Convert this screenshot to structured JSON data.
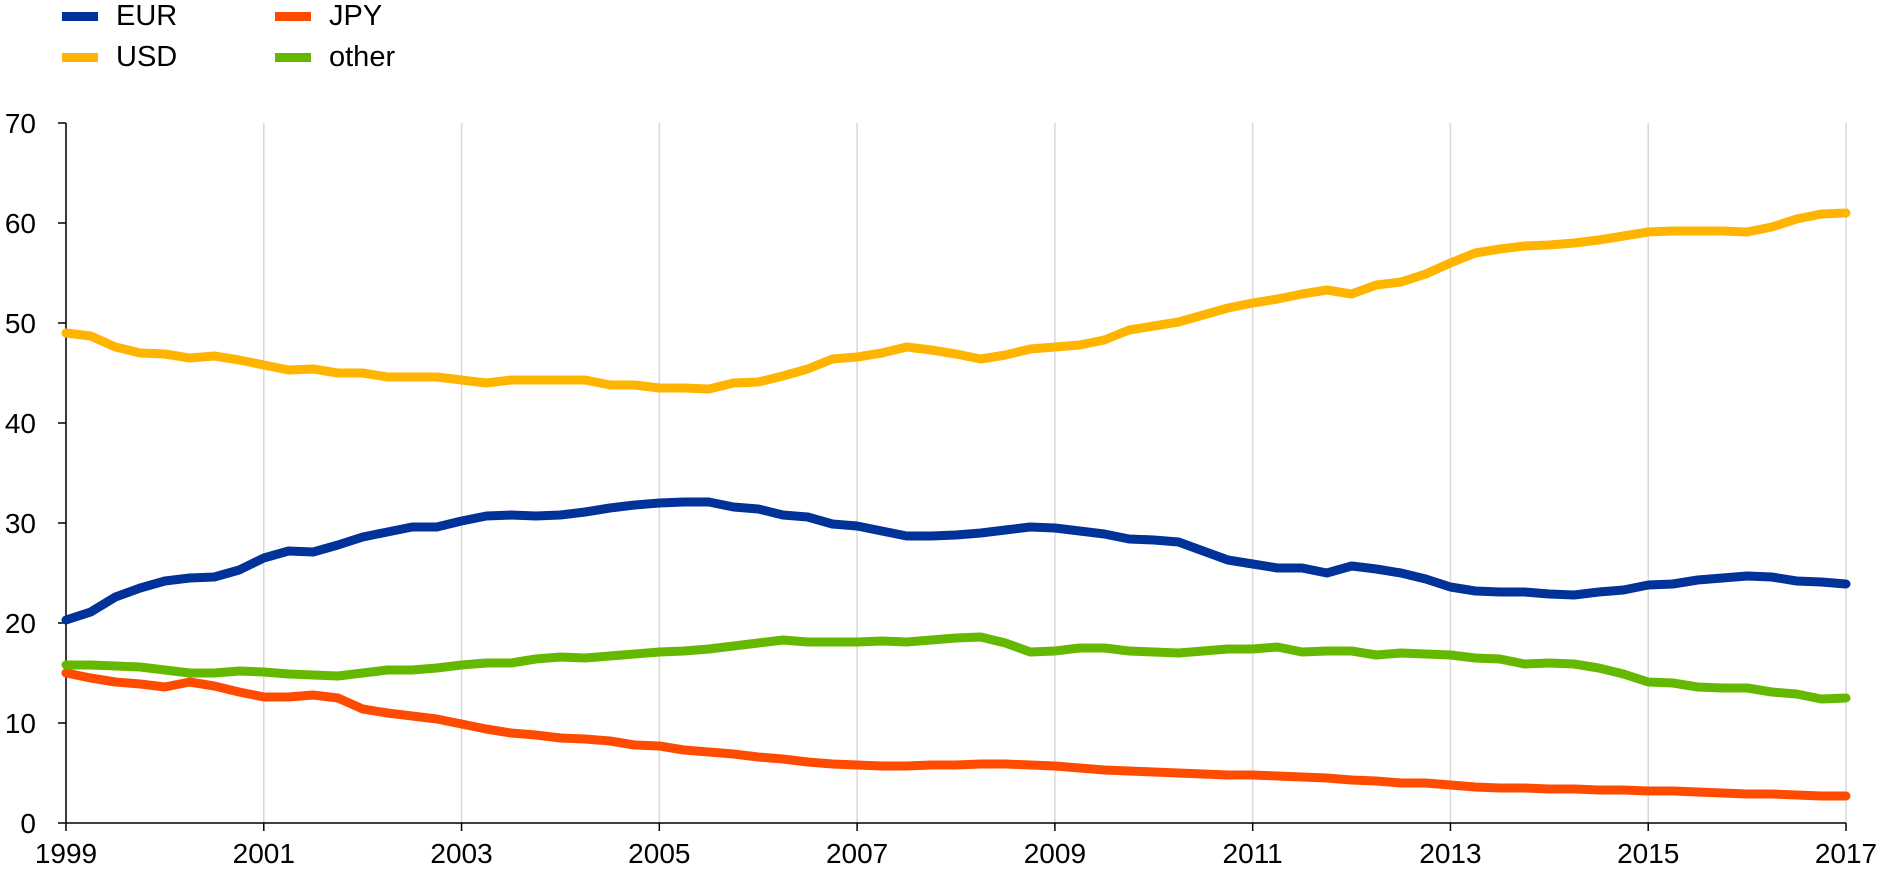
{
  "chart_data": {
    "type": "line",
    "title": "",
    "xlabel": "",
    "ylabel": "",
    "xlim": [
      1999,
      2017
    ],
    "ylim": [
      0,
      70
    ],
    "yticks": [
      0,
      10,
      20,
      30,
      40,
      50,
      60,
      70
    ],
    "xticks": [
      1999,
      2001,
      2003,
      2005,
      2007,
      2009,
      2011,
      2013,
      2015,
      2017
    ],
    "xtick_labels": [
      "1999",
      "2001",
      "2003",
      "2005",
      "2007",
      "2009",
      "2011",
      "2013",
      "2015",
      "2017"
    ],
    "ytick_labels": [
      "0",
      "10",
      "20",
      "30",
      "40",
      "50",
      "60",
      "70"
    ],
    "grid": "vertical",
    "legend_position": "top-left",
    "x": [
      1999.0,
      1999.25,
      1999.5,
      1999.75,
      2000.0,
      2000.25,
      2000.5,
      2000.75,
      2001.0,
      2001.25,
      2001.5,
      2001.75,
      2002.0,
      2002.25,
      2002.5,
      2002.75,
      2003.0,
      2003.25,
      2003.5,
      2003.75,
      2004.0,
      2004.25,
      2004.5,
      2004.75,
      2005.0,
      2005.25,
      2005.5,
      2005.75,
      2006.0,
      2006.25,
      2006.5,
      2006.75,
      2007.0,
      2007.25,
      2007.5,
      2007.75,
      2008.0,
      2008.25,
      2008.5,
      2008.75,
      2009.0,
      2009.25,
      2009.5,
      2009.75,
      2010.0,
      2010.25,
      2010.5,
      2010.75,
      2011.0,
      2011.25,
      2011.5,
      2011.75,
      2012.0,
      2012.25,
      2012.5,
      2012.75,
      2013.0,
      2013.25,
      2013.5,
      2013.75,
      2014.0,
      2014.25,
      2014.5,
      2014.75,
      2015.0,
      2015.25,
      2015.5,
      2015.75,
      2016.0,
      2016.25,
      2016.5,
      2016.75,
      2017.0
    ],
    "series": [
      {
        "name": "EUR",
        "color": "#003299",
        "values": [
          20.3,
          21.1,
          22.6,
          23.5,
          24.2,
          24.5,
          24.6,
          25.3,
          26.5,
          27.2,
          27.1,
          27.8,
          28.6,
          29.1,
          29.6,
          29.6,
          30.2,
          30.7,
          30.8,
          30.7,
          30.8,
          31.1,
          31.5,
          31.8,
          32.0,
          32.1,
          32.1,
          31.6,
          31.4,
          30.8,
          30.6,
          29.9,
          29.7,
          29.2,
          28.7,
          28.7,
          28.8,
          29.0,
          29.3,
          29.6,
          29.5,
          29.2,
          28.9,
          28.4,
          28.3,
          28.1,
          27.2,
          26.3,
          25.9,
          25.5,
          25.5,
          25.0,
          25.7,
          25.4,
          25.0,
          24.4,
          23.6,
          23.2,
          23.1,
          23.1,
          22.9,
          22.8,
          23.1,
          23.3,
          23.8,
          23.9,
          24.3,
          24.5,
          24.7,
          24.6,
          24.2,
          24.1,
          23.9
        ]
      },
      {
        "name": "USD",
        "color": "#FFB400",
        "values": [
          49.0,
          48.7,
          47.6,
          47.0,
          46.9,
          46.5,
          46.7,
          46.3,
          45.8,
          45.3,
          45.4,
          45.0,
          45.0,
          44.6,
          44.6,
          44.6,
          44.3,
          44.0,
          44.3,
          44.3,
          44.3,
          44.3,
          43.8,
          43.8,
          43.5,
          43.5,
          43.4,
          44.0,
          44.1,
          44.7,
          45.4,
          46.4,
          46.6,
          47.0,
          47.6,
          47.3,
          46.9,
          46.4,
          46.8,
          47.4,
          47.6,
          47.8,
          48.3,
          49.3,
          49.7,
          50.1,
          50.8,
          51.5,
          52.0,
          52.4,
          52.9,
          53.3,
          52.9,
          53.8,
          54.1,
          54.9,
          56.0,
          57.0,
          57.4,
          57.7,
          57.8,
          58.0,
          58.3,
          58.7,
          59.1,
          59.2,
          59.2,
          59.2,
          59.1,
          59.6,
          60.4,
          60.9,
          61.0
        ]
      },
      {
        "name": "JPY",
        "color": "#FF4B00",
        "values": [
          15.0,
          14.5,
          14.1,
          13.9,
          13.6,
          14.1,
          13.7,
          13.1,
          12.6,
          12.6,
          12.8,
          12.5,
          11.4,
          11.0,
          10.7,
          10.4,
          9.9,
          9.4,
          9.0,
          8.8,
          8.5,
          8.4,
          8.2,
          7.8,
          7.7,
          7.3,
          7.1,
          6.9,
          6.6,
          6.4,
          6.1,
          5.9,
          5.8,
          5.7,
          5.7,
          5.8,
          5.8,
          5.9,
          5.9,
          5.8,
          5.7,
          5.5,
          5.3,
          5.2,
          5.1,
          5.0,
          4.9,
          4.8,
          4.8,
          4.7,
          4.6,
          4.5,
          4.3,
          4.2,
          4.0,
          4.0,
          3.8,
          3.6,
          3.5,
          3.5,
          3.4,
          3.4,
          3.3,
          3.3,
          3.2,
          3.2,
          3.1,
          3.0,
          2.9,
          2.9,
          2.8,
          2.7,
          2.7
        ]
      },
      {
        "name": "other",
        "color": "#65B800",
        "values": [
          15.8,
          15.8,
          15.7,
          15.6,
          15.3,
          15.0,
          15.0,
          15.2,
          15.1,
          14.9,
          14.8,
          14.7,
          15.0,
          15.3,
          15.3,
          15.5,
          15.8,
          16.0,
          16.0,
          16.4,
          16.6,
          16.5,
          16.7,
          16.9,
          17.1,
          17.2,
          17.4,
          17.7,
          18.0,
          18.3,
          18.1,
          18.1,
          18.1,
          18.2,
          18.1,
          18.3,
          18.5,
          18.6,
          18.0,
          17.1,
          17.2,
          17.5,
          17.5,
          17.2,
          17.1,
          17.0,
          17.2,
          17.4,
          17.4,
          17.6,
          17.1,
          17.2,
          17.2,
          16.8,
          17.0,
          16.9,
          16.8,
          16.5,
          16.4,
          15.9,
          16.0,
          15.9,
          15.5,
          14.9,
          14.1,
          14.0,
          13.6,
          13.5,
          13.5,
          13.1,
          12.9,
          12.4,
          12.5
        ]
      }
    ]
  }
}
